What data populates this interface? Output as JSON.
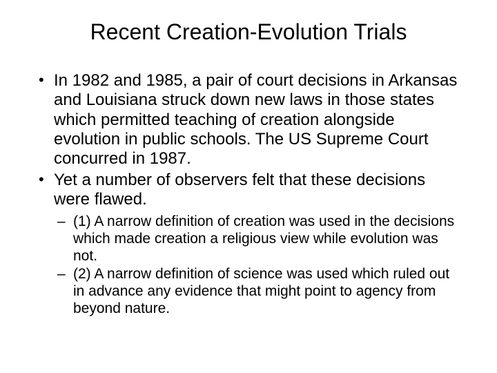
{
  "title": "Recent Creation-Evolution Trials",
  "bullets": [
    {
      "text": "In 1982 and 1985, a pair of court decisions in Arkansas and Louisiana struck down new laws in those states which permitted teaching of creation alongside evolution in public schools.  The US Supreme Court concurred in 1987."
    },
    {
      "text": "Yet a number of observers felt that these decisions were flawed."
    }
  ],
  "sub_bullets": [
    {
      "text": "(1) A narrow definition of creation was used in the decisions which made creation a religious view while evolution was not."
    },
    {
      "text": "(2) A narrow definition of science was used which ruled out in advance any evidence that might point to agency from beyond nature."
    }
  ],
  "colors": {
    "background": "#ffffff",
    "text": "#000000"
  },
  "typography": {
    "title_fontsize": 32,
    "body_fontsize": 24,
    "sub_fontsize": 21,
    "font_family": "Arial"
  }
}
